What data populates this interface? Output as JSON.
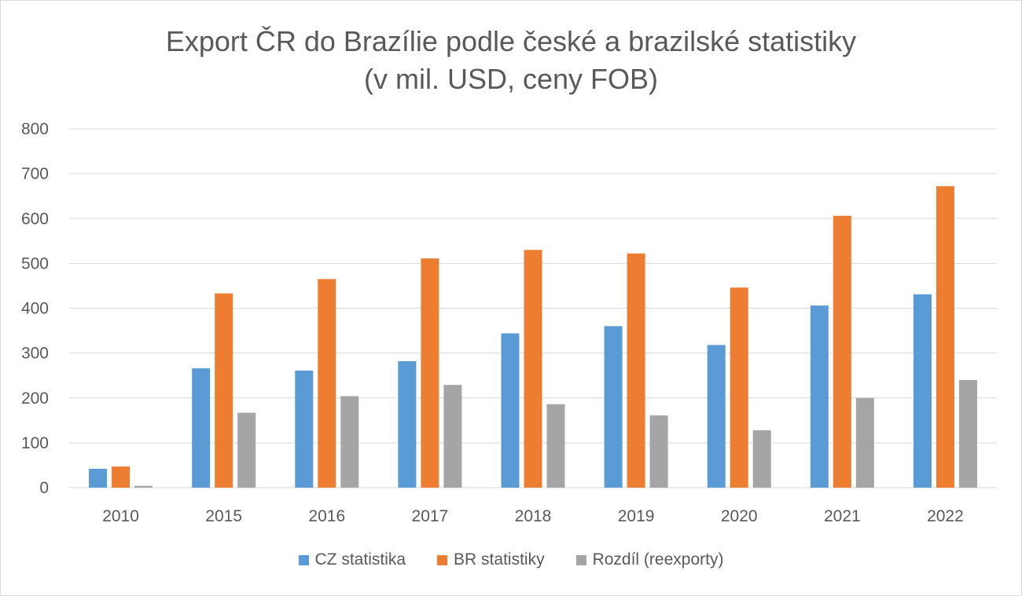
{
  "chart_data": {
    "type": "bar",
    "title_line1": "Export ČR do Brazílie podle české a brazilské statistiky",
    "title_line2": "(v mil. USD, ceny FOB)",
    "xlabel": "",
    "ylabel": "",
    "ylim": [
      0,
      800
    ],
    "yticks": [
      "0",
      "100",
      "200",
      "300",
      "400",
      "500",
      "600",
      "700",
      "800"
    ],
    "grid": true,
    "legend_position": "bottom",
    "categories": [
      "2010",
      "2015",
      "2016",
      "2017",
      "2018",
      "2019",
      "2020",
      "2021",
      "2022"
    ],
    "series": [
      {
        "name": "CZ statistika",
        "color": "#5b9bd5",
        "values": [
          42,
          266,
          261,
          282,
          344,
          360,
          318,
          406,
          431
        ]
      },
      {
        "name": "BR statistiky",
        "color": "#ed7d31",
        "values": [
          47,
          433,
          465,
          511,
          530,
          522,
          446,
          606,
          672
        ]
      },
      {
        "name": "Rozdíl (reexporty)",
        "color": "#a5a5a5",
        "values": [
          4,
          167,
          204,
          229,
          186,
          161,
          128,
          200,
          240
        ]
      }
    ]
  }
}
